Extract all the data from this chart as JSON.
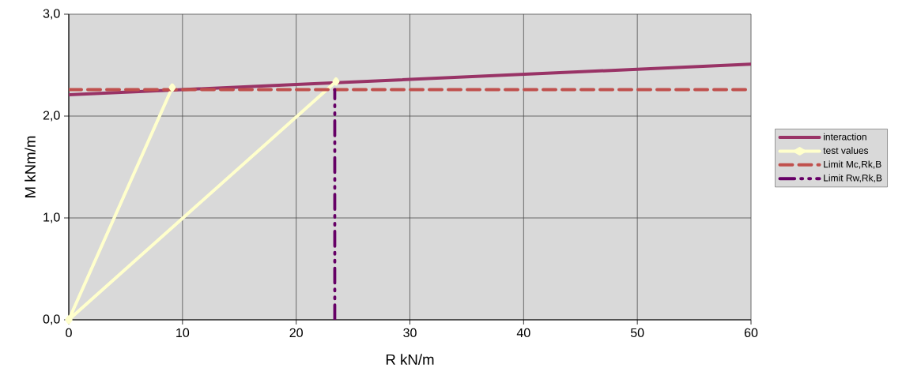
{
  "chart_data": {
    "type": "line",
    "xlabel": "R kN/m",
    "ylabel": "M kNm/m",
    "xlim": [
      0,
      60
    ],
    "ylim": [
      0,
      3
    ],
    "xticks": [
      0,
      10,
      20,
      30,
      40,
      50,
      60
    ],
    "yticks": [
      {
        "value": 0,
        "label": "0,0"
      },
      {
        "value": 1,
        "label": "1,0"
      },
      {
        "value": 2,
        "label": "2,0"
      },
      {
        "value": 3,
        "label": "3,0"
      }
    ],
    "grid": true,
    "legend": "right",
    "series": [
      {
        "name": "interaction",
        "color": "#993366",
        "line_style": "solid",
        "marker": "none",
        "x": [
          0,
          10,
          20,
          30,
          40,
          50,
          60
        ],
        "values": [
          2.21,
          2.26,
          2.31,
          2.36,
          2.41,
          2.46,
          2.51
        ]
      },
      {
        "name": "test values",
        "color": "#ffffcc",
        "line_style": "solid",
        "marker": "diamond",
        "x": [
          0,
          9.1,
          0,
          23.5
        ],
        "values": [
          0,
          2.28,
          0,
          2.34
        ]
      },
      {
        "name": "Limit Mc,Rk,B",
        "color": "#c0504d",
        "line_style": "dashed",
        "marker": "none",
        "x": [
          0,
          60
        ],
        "values": [
          2.26,
          2.26
        ]
      },
      {
        "name": "Limit Rw,Rk,B",
        "color": "#660066",
        "line_style": "dashdot",
        "marker": "none",
        "x": [
          23.4,
          23.4
        ],
        "values": [
          0,
          2.26
        ]
      }
    ]
  }
}
